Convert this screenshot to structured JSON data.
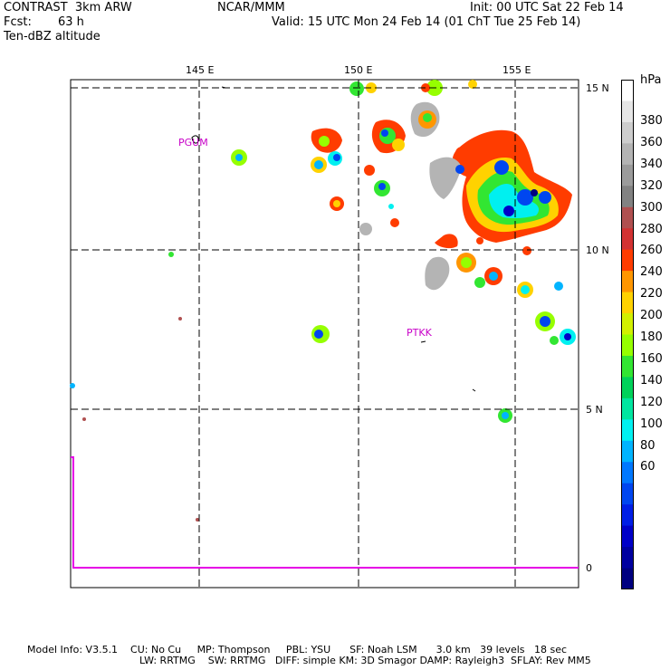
{
  "header": {
    "model": "CONTRAST  3km ARW",
    "forecast_label": "Fcst:",
    "forecast_value": "63 h",
    "field": "Ten-dBZ altitude",
    "org": "NCAR/MMM",
    "init": "Init: 00 UTC Sat 22 Feb 14",
    "valid": "Valid: 15 UTC Mon 24 Feb 14 (01 ChT Tue 25 Feb 14)"
  },
  "axes": {
    "lon_labels": [
      "145 E",
      "150 E",
      "155 E"
    ],
    "lat_labels": [
      "15 N",
      "10 N",
      "5 N",
      "0"
    ]
  },
  "stations": [
    "PGUM",
    "PTKK"
  ],
  "colorbar": {
    "unit": "hPa",
    "labels": [
      "380",
      "360",
      "340",
      "320",
      "300",
      "280",
      "260",
      "240",
      "220",
      "200",
      "180",
      "160",
      "140",
      "120",
      "100",
      "80",
      "60"
    ],
    "colors": [
      "#ffffff",
      "#e6e6e6",
      "#cdcdcd",
      "#b4b4b4",
      "#9b9b9b",
      "#828282",
      "#b05050",
      "#d23232",
      "#ff3c00",
      "#ff9600",
      "#ffd200",
      "#d2f000",
      "#96ff00",
      "#32e632",
      "#00d25a",
      "#00e6a0",
      "#00f0f0",
      "#00b4ff",
      "#0078ff",
      "#0046f0",
      "#001ee6",
      "#0000c8",
      "#0000a0",
      "#000080"
    ]
  },
  "colors": {
    "grid": "#000000",
    "station": "#c800c8",
    "boundary": "#e600e6"
  },
  "footer": {
    "line1": "Model Info: V3.5.1    CU: No Cu     MP: Thompson     PBL: YSU      SF: Noah LSM      3.0 km   39 levels   18 sec",
    "line2": "LW: RRTMG    SW: RRTMG   DIFF: simple KM: 3D Smagor DAMP: Rayleigh3  SFLAY: Rev MM5"
  }
}
